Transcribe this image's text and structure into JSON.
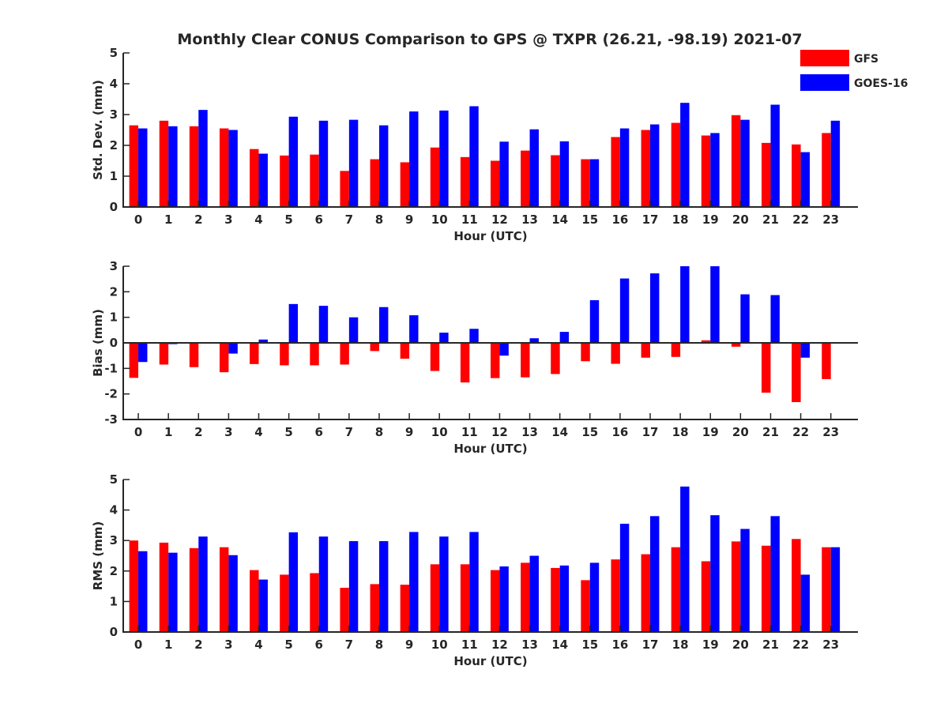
{
  "title": "Monthly Clear CONUS Comparison to GPS @ TXPR (26.21, -98.19) 2021-07",
  "colors": {
    "GFS": "#ff0000",
    "GOES-16": "#0000ff",
    "axis": "#262626"
  },
  "legend": [
    {
      "name": "GFS",
      "color": "#ff0000"
    },
    {
      "name": "GOES-16",
      "color": "#0000ff"
    }
  ],
  "chart_data": [
    {
      "type": "bar",
      "xlabel": "Hour (UTC)",
      "ylabel": "Std. Dev. (mm)",
      "ylim": [
        0,
        5
      ],
      "yticks": [
        0,
        1,
        2,
        3,
        4,
        5
      ],
      "categories": [
        "0",
        "1",
        "2",
        "3",
        "4",
        "5",
        "6",
        "7",
        "8",
        "9",
        "10",
        "11",
        "12",
        "13",
        "14",
        "15",
        "16",
        "17",
        "18",
        "19",
        "20",
        "21",
        "22",
        "23"
      ],
      "legend_position": "top-right",
      "series": [
        {
          "name": "GFS",
          "values": [
            2.65,
            2.8,
            2.62,
            2.55,
            1.88,
            1.67,
            1.7,
            1.17,
            1.55,
            1.45,
            1.93,
            1.62,
            1.5,
            1.83,
            1.68,
            1.55,
            2.27,
            2.5,
            2.73,
            2.32,
            2.98,
            2.08,
            2.03,
            2.4
          ]
        },
        {
          "name": "GOES-16",
          "values": [
            2.55,
            2.62,
            3.15,
            2.5,
            1.73,
            2.93,
            2.8,
            2.83,
            2.65,
            3.1,
            3.13,
            3.27,
            2.12,
            2.52,
            2.13,
            1.55,
            2.55,
            2.68,
            3.38,
            2.4,
            2.83,
            3.32,
            1.78,
            2.8
          ]
        }
      ]
    },
    {
      "type": "bar",
      "xlabel": "Hour (UTC)",
      "ylabel": "Bias (mm)",
      "ylim": [
        -3,
        3
      ],
      "yticks": [
        -3,
        -2,
        -1,
        0,
        1,
        2,
        3
      ],
      "categories": [
        "0",
        "1",
        "2",
        "3",
        "4",
        "5",
        "6",
        "7",
        "8",
        "9",
        "10",
        "11",
        "12",
        "13",
        "14",
        "15",
        "16",
        "17",
        "18",
        "19",
        "20",
        "21",
        "22",
        "23"
      ],
      "series": [
        {
          "name": "GFS",
          "values": [
            -1.37,
            -0.85,
            -0.95,
            -1.15,
            -0.83,
            -0.88,
            -0.88,
            -0.85,
            -0.32,
            -0.62,
            -1.1,
            -1.55,
            -1.38,
            -1.35,
            -1.22,
            -0.72,
            -0.82,
            -0.58,
            -0.55,
            0.1,
            -0.15,
            -1.95,
            -2.32,
            -1.42
          ]
        },
        {
          "name": "GOES-16",
          "values": [
            -0.75,
            -0.05,
            -0.03,
            -0.42,
            0.13,
            1.52,
            1.45,
            1.0,
            1.4,
            1.08,
            0.4,
            0.55,
            -0.5,
            0.18,
            0.43,
            1.67,
            2.52,
            2.72,
            3.0,
            3.0,
            1.9,
            1.87,
            -0.58,
            0.03
          ]
        }
      ]
    },
    {
      "type": "bar",
      "xlabel": "Hour (UTC)",
      "ylabel": "RMS (mm)",
      "ylim": [
        0,
        5
      ],
      "yticks": [
        0,
        1,
        2,
        3,
        4,
        5
      ],
      "categories": [
        "0",
        "1",
        "2",
        "3",
        "4",
        "5",
        "6",
        "7",
        "8",
        "9",
        "10",
        "11",
        "12",
        "13",
        "14",
        "15",
        "16",
        "17",
        "18",
        "19",
        "20",
        "21",
        "22",
        "23"
      ],
      "series": [
        {
          "name": "GFS",
          "values": [
            3.0,
            2.93,
            2.75,
            2.78,
            2.03,
            1.88,
            1.93,
            1.45,
            1.57,
            1.55,
            2.22,
            2.22,
            2.03,
            2.27,
            2.1,
            1.7,
            2.38,
            2.55,
            2.78,
            2.32,
            2.97,
            2.83,
            3.05,
            2.78
          ]
        },
        {
          "name": "GOES-16",
          "values": [
            2.65,
            2.6,
            3.13,
            2.52,
            1.72,
            3.27,
            3.13,
            2.98,
            2.98,
            3.28,
            3.13,
            3.28,
            2.15,
            2.5,
            2.18,
            2.27,
            3.55,
            3.8,
            4.77,
            3.83,
            3.38,
            3.8,
            1.88,
            2.78
          ]
        }
      ]
    }
  ]
}
